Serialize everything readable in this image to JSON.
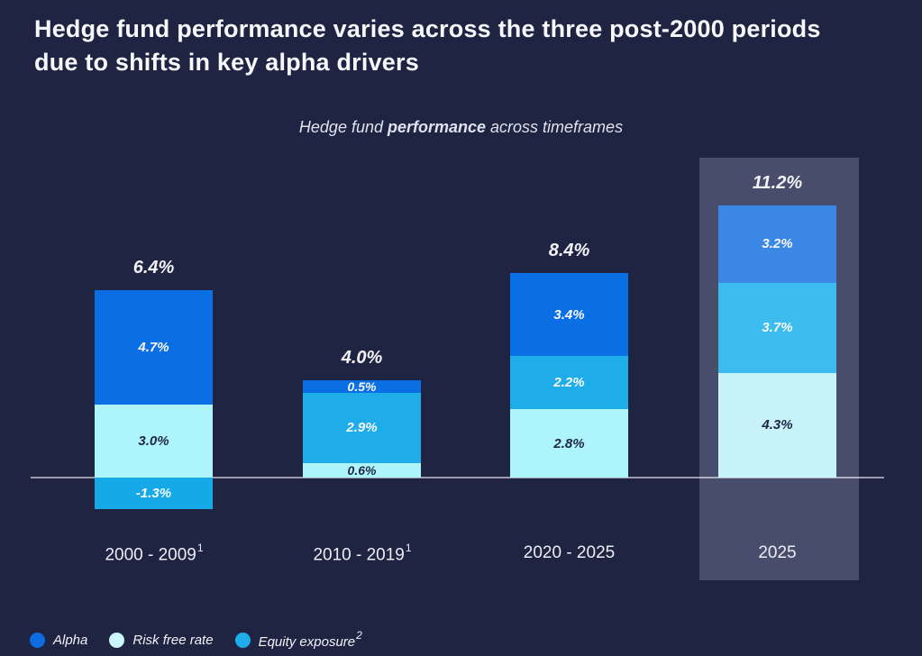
{
  "title": {
    "line1": "Hedge fund performance varies across the three post-2000 periods",
    "line2": "due to shifts in key alpha drivers"
  },
  "subtitle": {
    "pre": "Hedge fund ",
    "bold": "performance",
    "post": " across timeframes"
  },
  "colors": {
    "background": "#1f2443",
    "highlight_panel": "#474d6b",
    "alpha_blue": "#0a6fe4",
    "equity_cyan": "#18abe9",
    "risk_free_pale": "#aef4fb",
    "axis_line": "rgba(255,255,255,0.55)"
  },
  "legend": {
    "items": [
      {
        "label": "Alpha",
        "sup": "",
        "color": "#0d6ce0"
      },
      {
        "label": "Risk free rate",
        "sup": "",
        "color": "#c9f5fb"
      },
      {
        "label": "Equity exposure",
        "sup": "2",
        "color": "#1fade9"
      }
    ]
  },
  "chart_data": {
    "type": "bar",
    "stacked": true,
    "unit": "%",
    "title": "Hedge fund performance across timeframes",
    "categories": [
      "2000 - 2009",
      "2010 - 2019",
      "2020 - 2025",
      "2025"
    ],
    "category_footnote_sups": [
      "1",
      "1",
      "",
      ""
    ],
    "series_names": [
      "Alpha",
      "Equity exposure",
      "Risk free rate"
    ],
    "totals": [
      6.4,
      4.0,
      8.4,
      11.2
    ],
    "total_labels": [
      "6.4%",
      "4.0%",
      "8.4%",
      "11.2%"
    ],
    "ylim": [
      -1.5,
      12
    ],
    "grid": false,
    "legend_position": "bottom-left",
    "bars": [
      {
        "category": "2000 - 2009",
        "sup": "1",
        "total": 6.4,
        "total_label": "6.4%",
        "highlighted": false,
        "segments": [
          {
            "name": "Alpha",
            "value": 4.7,
            "label": "4.7%",
            "color": "#0a6fe4",
            "text": "light"
          },
          {
            "name": "Risk free rate",
            "value": 3.0,
            "label": "3.0%",
            "color": "#aef4fb",
            "text": "dark"
          },
          {
            "name": "Equity exposure",
            "value": -1.3,
            "label": "-1.3%",
            "color": "#15a9e8",
            "text": "light"
          }
        ]
      },
      {
        "category": "2010 - 2019",
        "sup": "1",
        "total": 4.0,
        "total_label": "4.0%",
        "highlighted": false,
        "segments": [
          {
            "name": "Alpha",
            "value": 0.5,
            "label": "0.5%",
            "color": "#0a6fe4",
            "text": "light"
          },
          {
            "name": "Equity exposure",
            "value": 2.9,
            "label": "2.9%",
            "color": "#1fade9",
            "text": "light"
          },
          {
            "name": "Risk free rate",
            "value": 0.6,
            "label": "0.6%",
            "color": "#aef4fb",
            "text": "dark"
          }
        ]
      },
      {
        "category": "2020 - 2025",
        "sup": "",
        "total": 8.4,
        "total_label": "8.4%",
        "highlighted": false,
        "segments": [
          {
            "name": "Alpha",
            "value": 3.4,
            "label": "3.4%",
            "color": "#0a6fe4",
            "text": "light"
          },
          {
            "name": "Equity exposure",
            "value": 2.2,
            "label": "2.2%",
            "color": "#1fade9",
            "text": "light"
          },
          {
            "name": "Risk free rate",
            "value": 2.8,
            "label": "2.8%",
            "color": "#aef4fb",
            "text": "dark"
          }
        ]
      },
      {
        "category": "2025",
        "sup": "",
        "total": 11.2,
        "total_label": "11.2%",
        "highlighted": true,
        "segments": [
          {
            "name": "Alpha",
            "value": 3.2,
            "label": "3.2%",
            "color": "#3a87e6",
            "text": "light"
          },
          {
            "name": "Equity exposure",
            "value": 3.7,
            "label": "3.7%",
            "color": "#3cbbee",
            "text": "light"
          },
          {
            "name": "Risk free rate",
            "value": 4.3,
            "label": "4.3%",
            "color": "#c8f3f9",
            "text": "dark"
          }
        ]
      }
    ]
  }
}
